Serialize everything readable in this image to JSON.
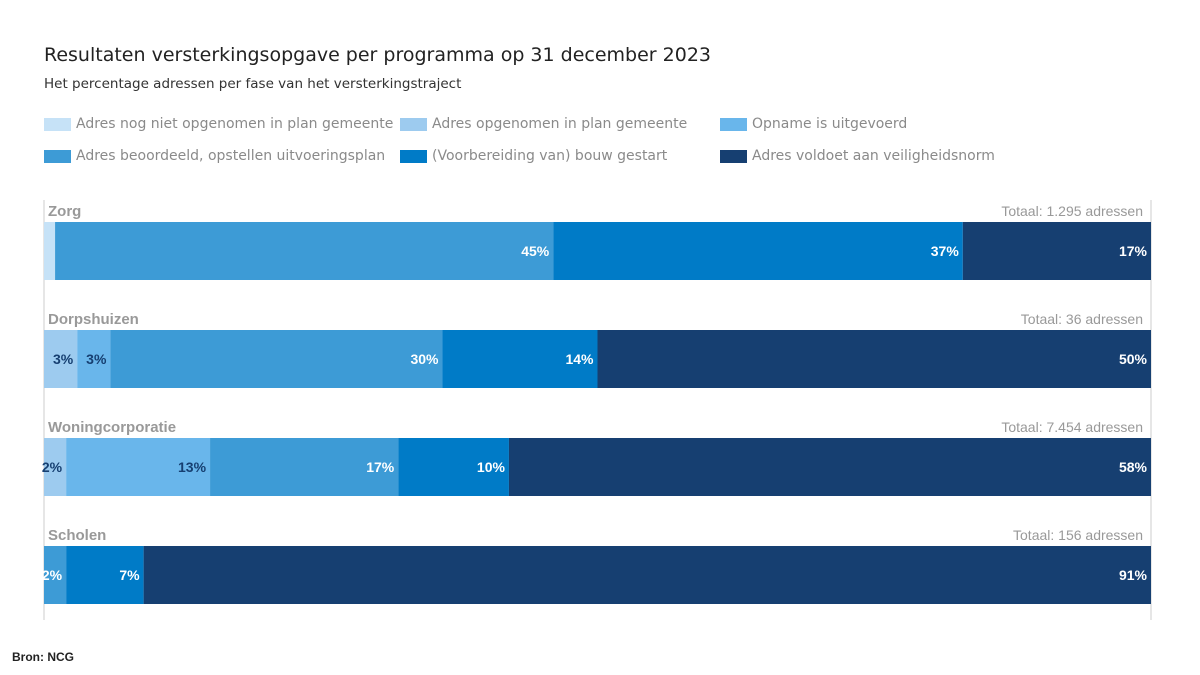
{
  "chart_data": {
    "type": "bar",
    "orientation": "horizontal-stacked-100",
    "title": "Resultaten versterkingsopgave per programma op 31 december 2023",
    "subtitle": "Het percentage adressen per fase van het versterkingstraject",
    "legend_position": "top",
    "series": [
      {
        "name": "Adres nog niet opgenomen in plan gemeente",
        "color": "#c6e2f7",
        "values": [
          1,
          0,
          0,
          0
        ]
      },
      {
        "name": "Adres opgenomen in plan gemeente",
        "color": "#9dcbef",
        "values": [
          0,
          3,
          2,
          0
        ]
      },
      {
        "name": "Opname is uitgevoerd",
        "color": "#69b6eb",
        "values": [
          0,
          3,
          13,
          0
        ]
      },
      {
        "name": "Adres beoordeeld, opstellen uitvoeringsplan",
        "color": "#3d9bd6",
        "values": [
          45,
          30,
          17,
          2
        ]
      },
      {
        "name": "(Voorbereiding van) bouw gestart",
        "color": "#007bc7",
        "values": [
          37,
          14,
          10,
          7
        ]
      },
      {
        "name": "Adres voldoet aan veiligheidsnorm",
        "color": "#163f71",
        "values": [
          17,
          50,
          58,
          91
        ]
      }
    ],
    "categories": [
      "Zorg",
      "Dorpshuizen",
      "Woningcorporatie",
      "Scholen"
    ],
    "totals": [
      "Totaal: 1.295 adressen",
      "Totaal: 36 adressen",
      "Totaal: 7.454 adressen",
      "Totaal: 156 adressen"
    ],
    "unlabeled": [
      [
        0,
        0
      ]
    ],
    "xlim": [
      0,
      100
    ]
  },
  "source": "Bron: NCG"
}
